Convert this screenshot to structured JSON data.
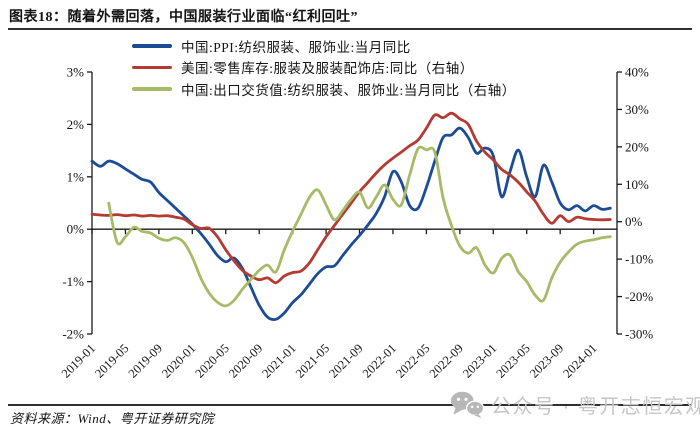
{
  "header": {
    "title": "图表18：随着外需回落，中国服装行业面临“红利回吐”"
  },
  "legend": [
    {
      "key": "china_ppi",
      "label": "中国:PPI:纺织服装、服饰业:当月同比",
      "color": "#1D4C96"
    },
    {
      "key": "us_retail_inventory",
      "label": "美国:零售库存:服装及服装配饰店:同比（右轴）",
      "color": "#B43A32"
    },
    {
      "key": "china_export_delivery",
      "label": "中国:出口交货值:纺织服装、服饰业:当月同比（右轴）",
      "color": "#A6BA68"
    }
  ],
  "footer": {
    "source": "资料来源：Wind、粤开证券研究院",
    "watermark": "公众号 · 粤开志恒宏观"
  },
  "chart_data": {
    "type": "line",
    "title": "图表18：随着外需回落，中国服装行业面临“红利回吐”",
    "legend_position": "top",
    "grid": false,
    "x_frequency": "monthly",
    "x": [
      "2019-01",
      "2019-02",
      "2019-03",
      "2019-04",
      "2019-05",
      "2019-06",
      "2019-07",
      "2019-08",
      "2019-09",
      "2019-10",
      "2019-11",
      "2019-12",
      "2020-01",
      "2020-02",
      "2020-03",
      "2020-04",
      "2020-05",
      "2020-06",
      "2020-07",
      "2020-08",
      "2020-09",
      "2020-10",
      "2020-11",
      "2020-12",
      "2021-01",
      "2021-02",
      "2021-03",
      "2021-04",
      "2021-05",
      "2021-06",
      "2021-07",
      "2021-08",
      "2021-09",
      "2021-10",
      "2021-11",
      "2021-12",
      "2022-01",
      "2022-02",
      "2022-03",
      "2022-04",
      "2022-05",
      "2022-06",
      "2022-07",
      "2022-08",
      "2022-09",
      "2022-10",
      "2022-11",
      "2022-12",
      "2023-01",
      "2023-02",
      "2023-03",
      "2023-04",
      "2023-05",
      "2023-06",
      "2023-07",
      "2023-08",
      "2023-09",
      "2023-10",
      "2023-11",
      "2023-12",
      "2024-01",
      "2024-02",
      "2024-03"
    ],
    "x_tick_labels": [
      "2019-01",
      "2019-05",
      "2019-09",
      "2020-01",
      "2020-05",
      "2020-09",
      "2021-01",
      "2021-05",
      "2021-09",
      "2022-01",
      "2022-05",
      "2022-09",
      "2023-01",
      "2023-05",
      "2023-09",
      "2024-01"
    ],
    "left_axis": {
      "min": -2,
      "max": 3,
      "ticks": [
        "3%",
        "2%",
        "1%",
        "0%",
        "-1%",
        "-2%"
      ],
      "tick_values": [
        3,
        2,
        1,
        0,
        -1,
        -2
      ]
    },
    "right_axis": {
      "min": -30,
      "max": 40,
      "ticks": [
        "40%",
        "30%",
        "20%",
        "10%",
        "0%",
        "-10%",
        "-20%",
        "-30%"
      ],
      "tick_values": [
        40,
        30,
        20,
        10,
        0,
        -10,
        -20,
        -30
      ]
    },
    "series": [
      {
        "name": "中国:PPI:纺织服装、服饰业:当月同比",
        "key": "china_ppi",
        "axis": "left",
        "color": "#1D4C96",
        "values": [
          1.3,
          1.2,
          1.3,
          1.25,
          1.15,
          1.05,
          0.95,
          0.9,
          0.7,
          0.55,
          0.4,
          0.25,
          0.1,
          -0.08,
          -0.28,
          -0.5,
          -0.62,
          -0.55,
          -0.75,
          -1.1,
          -1.45,
          -1.68,
          -1.72,
          -1.6,
          -1.4,
          -1.25,
          -1.05,
          -0.85,
          -0.72,
          -0.7,
          -0.5,
          -0.3,
          -0.12,
          0.08,
          0.3,
          0.62,
          1.1,
          0.9,
          0.45,
          0.4,
          0.8,
          1.3,
          1.75,
          1.8,
          1.93,
          1.75,
          1.45,
          1.55,
          1.4,
          0.62,
          1.1,
          1.51,
          1.0,
          0.62,
          1.22,
          0.9,
          0.5,
          0.37,
          0.45,
          0.35,
          0.45,
          0.38,
          0.4
        ]
      },
      {
        "name": "美国:零售库存:服装及服装配饰店:同比（右轴）",
        "key": "us_retail_inventory",
        "axis": "right",
        "color": "#B43A32",
        "values": [
          2.0,
          1.8,
          1.7,
          1.9,
          1.6,
          1.8,
          1.5,
          1.7,
          1.5,
          1.6,
          1.2,
          0.7,
          -0.8,
          -1.8,
          -1.7,
          -4.0,
          -7.5,
          -10.5,
          -13.0,
          -14.5,
          -15.5,
          -15.0,
          -16.3,
          -14.5,
          -13.6,
          -13.2,
          -11.0,
          -7.5,
          -4.0,
          -1.0,
          2.0,
          5.0,
          8.0,
          10.5,
          13.0,
          15.2,
          17.0,
          18.6,
          20.3,
          21.8,
          25.0,
          28.5,
          27.8,
          29.0,
          27.5,
          26.0,
          21.5,
          18.6,
          16.5,
          14.0,
          12.5,
          10.5,
          8.0,
          5.5,
          2.0,
          -0.4,
          1.6,
          0.0,
          1.2,
          0.8,
          0.6,
          0.5,
          0.6
        ]
      },
      {
        "name": "中国:出口交货值:纺织服装、服饰业:当月同比（右轴）",
        "key": "china_export_delivery",
        "axis": "right",
        "color": "#A6BA68",
        "values": [
          null,
          null,
          5.0,
          -5.5,
          -4.0,
          -1.5,
          -2.6,
          -3.0,
          -4.4,
          -5.0,
          -4.3,
          -5.6,
          -9.5,
          -15.0,
          -19.0,
          -21.5,
          -22.5,
          -21.0,
          -18.0,
          -15.5,
          -13.0,
          -11.6,
          -13.4,
          -7.5,
          -2.5,
          2.0,
          6.5,
          8.5,
          4.5,
          0.5,
          3.0,
          6.0,
          7.9,
          3.7,
          6.6,
          9.8,
          6.0,
          4.5,
          12.5,
          19.5,
          19.2,
          18.6,
          6.3,
          -1.0,
          -6.5,
          -8.4,
          -7.0,
          -11.5,
          -13.7,
          -9.8,
          -8.9,
          -13.4,
          -16.0,
          -19.6,
          -21.0,
          -15.0,
          -10.8,
          -8.1,
          -6.0,
          -5.2,
          -4.8,
          -4.3,
          -4.0
        ]
      }
    ]
  }
}
